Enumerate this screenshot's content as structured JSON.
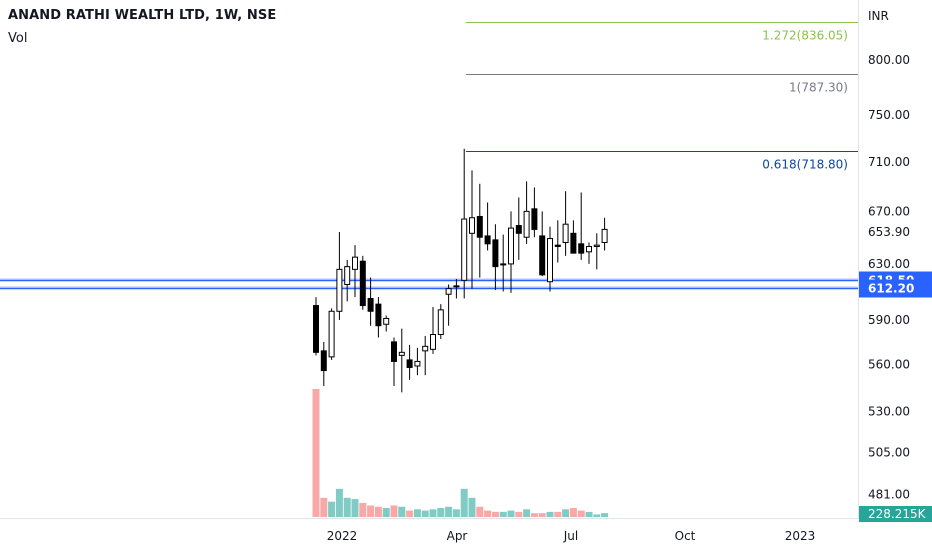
{
  "header": {
    "title": "ANAND RATHI WEALTH LTD, 1W, NSE",
    "volume_label": "Vol"
  },
  "price_axis": {
    "currency": "INR",
    "ticks": [
      "800.00",
      "750.00",
      "710.00",
      "670.00",
      "653.90",
      "630.00",
      "590.00",
      "560.00",
      "530.00",
      "505.00",
      "481.00"
    ],
    "scale": "log"
  },
  "time_axis": {
    "ticks": [
      "2022",
      "Apr",
      "Jul",
      "Oct",
      "2023"
    ]
  },
  "horizontal_lines": [
    {
      "price": 618.5,
      "label": "618.50",
      "color": "#2962ff"
    },
    {
      "price": 612.2,
      "label": "612.20",
      "color": "#2962ff"
    }
  ],
  "fib_levels": [
    {
      "ratio": "1.272",
      "price": 836.05,
      "label": "1.272(836.05)",
      "color": "#8bc34a"
    },
    {
      "ratio": "1",
      "price": 787.3,
      "label": "1(787.30)",
      "color": "#787b86"
    },
    {
      "ratio": "0.618",
      "price": 718.8,
      "label": "0.618(718.80)",
      "color": "#0d47a1"
    }
  ],
  "volume_badge": "228.215K",
  "colors": {
    "up_fill": "#ffffff",
    "down_fill": "#000000",
    "candle_border": "#000000",
    "vol_up": "#80cbc4",
    "vol_down": "#f7a9a7",
    "badge_bg": "#26a69a",
    "hline_badge_bg": "#2962ff"
  },
  "chart_data": {
    "type": "candlestick",
    "interval": "1W",
    "x_ticks": [
      "2022",
      "Apr",
      "Jul",
      "Oct",
      "2023"
    ],
    "candles": [
      {
        "o": 600,
        "h": 606,
        "l": 566,
        "c": 568,
        "v": 100
      },
      {
        "o": 569,
        "h": 575,
        "l": 546,
        "c": 556,
        "v": 15
      },
      {
        "o": 565,
        "h": 598,
        "l": 563,
        "c": 596,
        "v": 12
      },
      {
        "o": 596,
        "h": 654,
        "l": 590,
        "c": 626,
        "v": 22
      },
      {
        "o": 615,
        "h": 633,
        "l": 603,
        "c": 628,
        "v": 15
      },
      {
        "o": 626,
        "h": 644,
        "l": 606,
        "c": 635,
        "v": 14
      },
      {
        "o": 632,
        "h": 636,
        "l": 597,
        "c": 600,
        "v": 11
      },
      {
        "o": 605,
        "h": 620,
        "l": 586,
        "c": 596,
        "v": 9
      },
      {
        "o": 601,
        "h": 606,
        "l": 578,
        "c": 586,
        "v": 8
      },
      {
        "o": 587,
        "h": 593,
        "l": 582,
        "c": 591,
        "v": 7
      },
      {
        "o": 575,
        "h": 578,
        "l": 546,
        "c": 562,
        "v": 9
      },
      {
        "o": 566,
        "h": 584,
        "l": 542,
        "c": 568,
        "v": 8
      },
      {
        "o": 563,
        "h": 573,
        "l": 550,
        "c": 558,
        "v": 5
      },
      {
        "o": 559,
        "h": 571,
        "l": 553,
        "c": 562,
        "v": 6
      },
      {
        "o": 569,
        "h": 579,
        "l": 553,
        "c": 572,
        "v": 5
      },
      {
        "o": 570,
        "h": 599,
        "l": 567,
        "c": 580,
        "v": 6
      },
      {
        "o": 580,
        "h": 601,
        "l": 577,
        "c": 597,
        "v": 7
      },
      {
        "o": 608,
        "h": 615,
        "l": 586,
        "c": 612,
        "v": 8
      },
      {
        "o": 614,
        "h": 619,
        "l": 605,
        "c": 614,
        "v": 6
      },
      {
        "o": 618,
        "h": 721,
        "l": 605,
        "c": 664,
        "v": 22
      },
      {
        "o": 653,
        "h": 703,
        "l": 612,
        "c": 665,
        "v": 15
      },
      {
        "o": 666,
        "h": 692,
        "l": 620,
        "c": 650,
        "v": 8
      },
      {
        "o": 651,
        "h": 677,
        "l": 640,
        "c": 645,
        "v": 5
      },
      {
        "o": 648,
        "h": 660,
        "l": 611,
        "c": 628,
        "v": 4
      },
      {
        "o": 630,
        "h": 652,
        "l": 610,
        "c": 630,
        "v": 4
      },
      {
        "o": 630,
        "h": 670,
        "l": 609,
        "c": 657,
        "v": 5
      },
      {
        "o": 659,
        "h": 681,
        "l": 633,
        "c": 653,
        "v": 4
      },
      {
        "o": 650,
        "h": 694,
        "l": 645,
        "c": 670,
        "v": 6
      },
      {
        "o": 672,
        "h": 689,
        "l": 650,
        "c": 656,
        "v": 3
      },
      {
        "o": 651,
        "h": 670,
        "l": 621,
        "c": 622,
        "v": 3
      },
      {
        "o": 617,
        "h": 658,
        "l": 610,
        "c": 649,
        "v": 4
      },
      {
        "o": 644,
        "h": 663,
        "l": 631,
        "c": 643,
        "v": 4
      },
      {
        "o": 646,
        "h": 686,
        "l": 636,
        "c": 660,
        "v": 6
      },
      {
        "o": 653,
        "h": 663,
        "l": 638,
        "c": 638,
        "v": 7
      },
      {
        "o": 645,
        "h": 685,
        "l": 633,
        "c": 638,
        "v": 5
      },
      {
        "o": 639,
        "h": 646,
        "l": 630,
        "c": 643,
        "v": 4
      },
      {
        "o": 643,
        "h": 653,
        "l": 626,
        "c": 644,
        "v": 2
      },
      {
        "o": 646,
        "h": 665,
        "l": 640,
        "c": 656,
        "v": 3
      }
    ]
  }
}
